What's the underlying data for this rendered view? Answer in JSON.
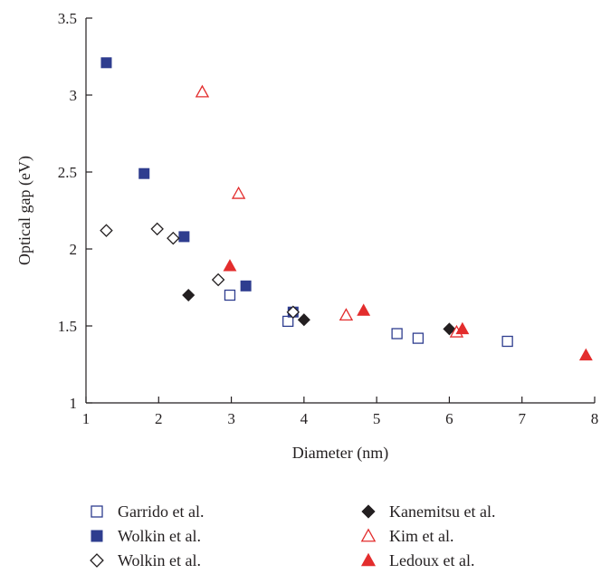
{
  "chart_data": {
    "type": "scatter",
    "xlabel": "Diameter (nm)",
    "ylabel": "Optical gap (eV)",
    "xlim": [
      1,
      8
    ],
    "ylim": [
      1,
      3.5
    ],
    "xticks": [
      "1",
      "2",
      "3",
      "4",
      "5",
      "6",
      "7",
      "8"
    ],
    "yticks": [
      "1",
      "1.5",
      "2",
      "2.5",
      "3",
      "3.5"
    ],
    "grid": false,
    "legend_placement": "bottom",
    "series": [
      {
        "name": "Garrido et al.",
        "marker": "square-open",
        "color": "#2e3d8f",
        "points": [
          [
            2.98,
            1.7
          ],
          [
            3.78,
            1.53
          ],
          [
            5.28,
            1.45
          ],
          [
            5.57,
            1.42
          ],
          [
            6.8,
            1.4
          ]
        ]
      },
      {
        "name": "Wolkin et al.",
        "marker": "square-filled",
        "color": "#2e3d8f",
        "points": [
          [
            1.28,
            3.21
          ],
          [
            1.8,
            2.49
          ],
          [
            2.35,
            2.08
          ],
          [
            3.2,
            1.76
          ],
          [
            3.85,
            1.59
          ]
        ]
      },
      {
        "name": "Wolkin et al.",
        "marker": "diamond-open",
        "color": "#231f20",
        "points": [
          [
            1.28,
            2.12
          ],
          [
            1.98,
            2.13
          ],
          [
            2.2,
            2.07
          ],
          [
            2.82,
            1.8
          ],
          [
            3.85,
            1.59
          ]
        ]
      },
      {
        "name": "Kanemitsu et al.",
        "marker": "diamond-filled",
        "color": "#231f20",
        "points": [
          [
            2.41,
            1.7
          ],
          [
            4.0,
            1.54
          ],
          [
            6.0,
            1.48
          ]
        ]
      },
      {
        "name": "Kim et al.",
        "marker": "triangle-open",
        "color": "#e32d2d",
        "points": [
          [
            2.6,
            3.02
          ],
          [
            3.1,
            2.36
          ],
          [
            4.58,
            1.57
          ],
          [
            6.1,
            1.46
          ]
        ]
      },
      {
        "name": "Ledoux et al.",
        "marker": "triangle-filled",
        "color": "#e32d2d",
        "points": [
          [
            2.98,
            1.89
          ],
          [
            4.82,
            1.6
          ],
          [
            6.18,
            1.48
          ],
          [
            7.88,
            1.31
          ]
        ]
      }
    ]
  }
}
